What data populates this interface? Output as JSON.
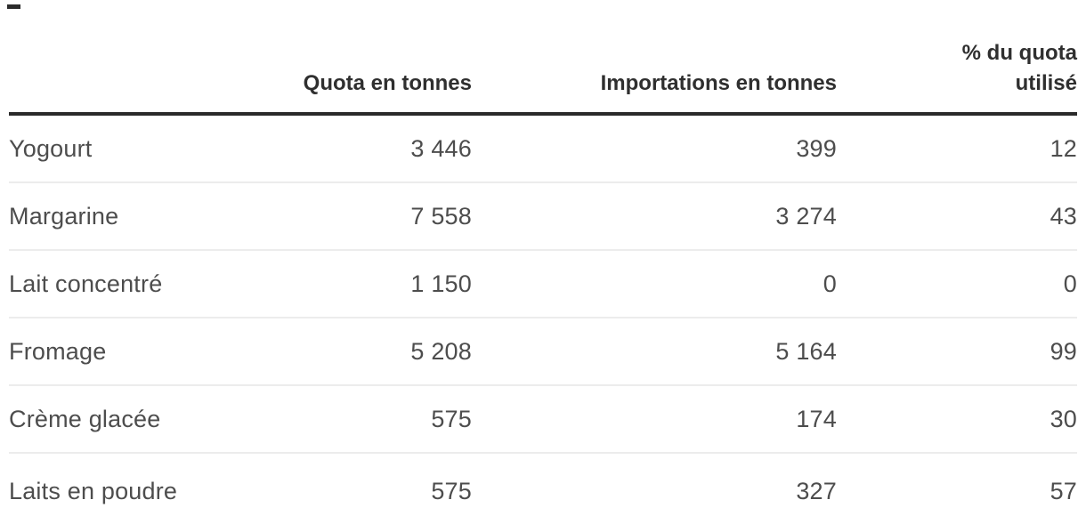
{
  "colors": {
    "background": "#ffffff",
    "header_text": "#2f2f2f",
    "body_text": "#4d4d4d",
    "header_rule": "#2b2b2b",
    "row_separator": "#ececec"
  },
  "chart_data": {
    "type": "table",
    "columns": [
      "",
      "Quota en tonnes",
      "Importations en tonnes",
      "% du quota utilisé"
    ],
    "rows": [
      [
        "Yogourt",
        "3 446",
        "399",
        "12"
      ],
      [
        "Margarine",
        "7 558",
        "3 274",
        "43"
      ],
      [
        "Lait concentré",
        "1 150",
        "0",
        "0"
      ],
      [
        "Fromage",
        "5 208",
        "5 164",
        "99"
      ],
      [
        "Crème glacée",
        "575",
        "174",
        "30"
      ],
      [
        "Laits en poudre",
        "575",
        "327",
        "57"
      ]
    ],
    "categories": [
      "Yogourt",
      "Margarine",
      "Lait concentré",
      "Fromage",
      "Crème glacée",
      "Laits en poudre"
    ],
    "series": [
      {
        "name": "Quota en tonnes",
        "values": [
          3446,
          7558,
          1150,
          5208,
          575,
          575
        ]
      },
      {
        "name": "Importations en tonnes",
        "values": [
          399,
          3274,
          0,
          5164,
          174,
          327
        ]
      },
      {
        "name": "% du quota utilisé",
        "values": [
          12,
          43,
          0,
          99,
          30,
          57
        ]
      }
    ],
    "layout": {
      "label_column_align": "left",
      "value_columns_align": "right",
      "grid": "horizontal-separators"
    }
  }
}
